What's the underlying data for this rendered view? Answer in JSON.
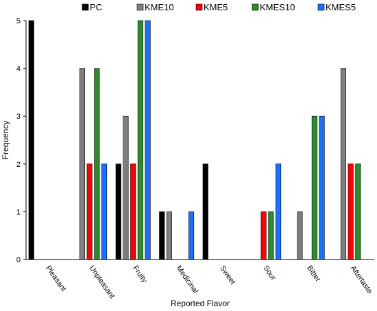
{
  "chart_data": {
    "type": "bar",
    "title": "",
    "xlabel": "Reported Flavor",
    "ylabel": "Frequency",
    "ylim": [
      0,
      5
    ],
    "yticks": [
      "0",
      "1",
      "2",
      "3",
      "4",
      "5"
    ],
    "grid": false,
    "legend_position": "top",
    "categories": [
      "Pleasant",
      "Unpleasant",
      "Fruity",
      "Medicinal",
      "Sweet",
      "Sour",
      "Bitter",
      "Aftertaste"
    ],
    "series": [
      {
        "name": "PC",
        "color": "#000000",
        "values": [
          5,
          0,
          2,
          1,
          2,
          0,
          0,
          0
        ]
      },
      {
        "name": "KME10",
        "color": "#7f7f7f",
        "values": [
          0,
          4,
          3,
          1,
          0,
          0,
          1,
          4
        ]
      },
      {
        "name": "KME5",
        "color": "#ff0000",
        "values": [
          0,
          2,
          2,
          0,
          0,
          1,
          0,
          2
        ]
      },
      {
        "name": "KMES10",
        "color": "#2e8b2e",
        "values": [
          0,
          4,
          5,
          0,
          0,
          1,
          3,
          2
        ]
      },
      {
        "name": "KMES5",
        "color": "#1a6fff",
        "values": [
          0,
          2,
          5,
          1,
          0,
          2,
          3,
          0
        ]
      }
    ]
  }
}
